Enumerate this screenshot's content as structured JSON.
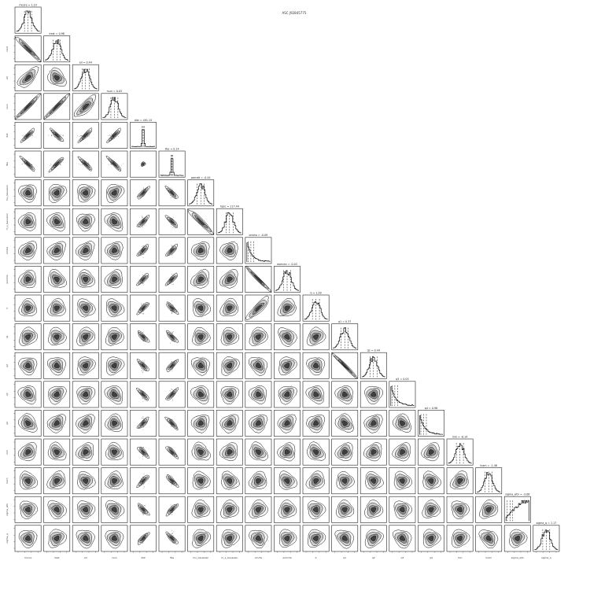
{
  "figure": {
    "suptitle": "ASC J92845775"
  },
  "chart_data": {
    "type": "corner",
    "parameters": [
      "mcore",
      "lrest",
      "ell",
      "rsun",
      "dist",
      "lfes",
      "parratt",
      "hpsc",
      "omcta",
      "eomcta",
      "b",
      "q1",
      "q2",
      "q3",
      "q4",
      "lnm",
      "lnam",
      "sigma_wtn",
      "sigma_q"
    ],
    "axis_labels": [
      "mcore",
      "lrest",
      "ell",
      "rsun",
      "dist",
      "lfes",
      "mu_Gaussian",
      "m_s_Gaussian",
      "omcta",
      "eomcta",
      "b",
      "q1",
      "q2",
      "q3",
      "q4",
      "lnm",
      "lnam",
      "sigma_wtn",
      "sigma_q"
    ],
    "titles": [
      "mcore = 1.23",
      "lrest = 0.98",
      "ell = 0.44",
      "rsun = 0.03",
      "dist = 491.15",
      "lfes = 0.14",
      "parratt = -0.44",
      "hpsc = 117.44",
      "omcta = -0.09",
      "eomcta = -0.03",
      "b = 1.09",
      "q1 = 0.37",
      "q2 = 0.44",
      "q3 = 0.03",
      "q4 = 0.98",
      "lnm = -8.14",
      "lnam = -1.48",
      "sigma_wtn = -3.08",
      "sigma_q = 1.17"
    ],
    "quantiles": [
      0.16,
      0.5,
      0.84
    ],
    "correlations": [
      {
        "pair": [
          "mcore",
          "lrest"
        ],
        "rho": -0.85
      },
      {
        "pair": [
          "mcore",
          "rsun"
        ],
        "rho": 0.9
      },
      {
        "pair": [
          "lrest",
          "rsun"
        ],
        "rho": 0.9
      },
      {
        "pair": [
          "mcore",
          "ell"
        ],
        "rho": 0.4
      },
      {
        "pair": [
          "ell",
          "rsun"
        ],
        "rho": 0.5
      },
      {
        "pair": [
          "parratt",
          "hpsc"
        ],
        "rho": -0.8
      },
      {
        "pair": [
          "omcta",
          "eomcta"
        ],
        "rho": -0.95
      },
      {
        "pair": [
          "q1",
          "q2"
        ],
        "rho": -0.95
      },
      {
        "pair": [
          "b",
          "omcta"
        ],
        "rho": 0.6
      }
    ],
    "skewed_params": [
      "omcta",
      "q3",
      "q4",
      "sigma_wtn"
    ],
    "narrow_params": [
      "dist",
      "lfes"
    ]
  }
}
